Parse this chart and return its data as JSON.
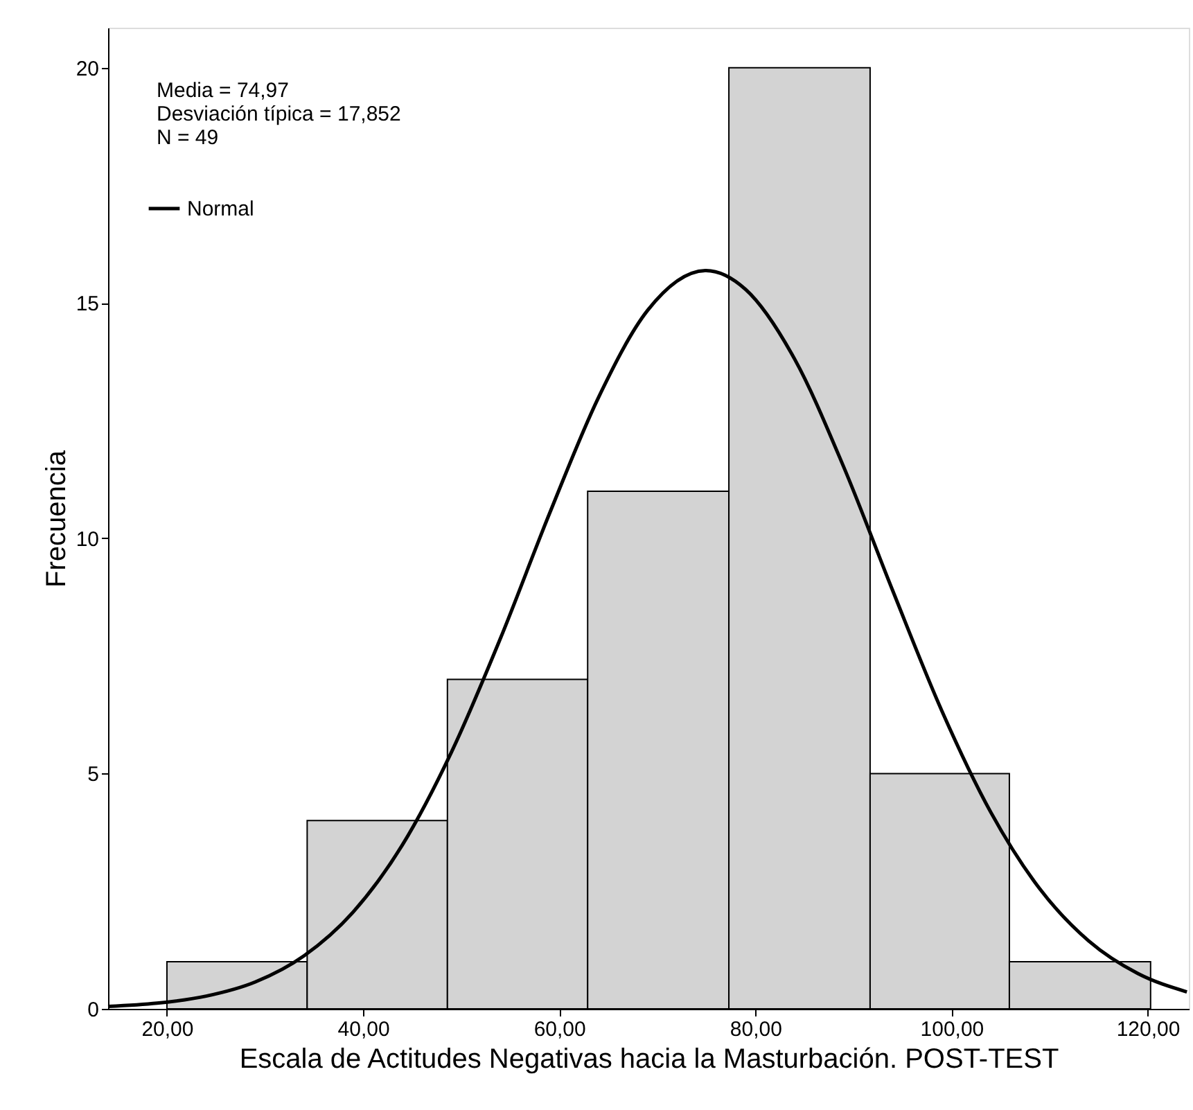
{
  "chart_data": {
    "type": "histogram",
    "xlabel": "Escala de Actitudes Negativas hacia la Masturbación. POST-TEST",
    "ylabel": "Frecuencia",
    "bins": [
      20,
      34.3,
      48.6,
      62.9,
      77.3,
      91.7,
      105.9,
      120.3
    ],
    "values": [
      1,
      4,
      7,
      11,
      20,
      5,
      1
    ],
    "color": "#d3d3d3",
    "series": [
      {
        "name": "Normal",
        "type": "line",
        "color": "#000000",
        "x": [
          14,
          19,
          24,
          29,
          34,
          39,
          44,
          49,
          54,
          59,
          64,
          69,
          74.97,
          79,
          84,
          89,
          94,
          99,
          104,
          109,
          114,
          119,
          124
        ],
        "values": [
          0.05,
          0.12,
          0.27,
          0.57,
          1.13,
          2.06,
          3.48,
          5.45,
          7.87,
          10.52,
          12.99,
          14.84,
          15.69,
          15.29,
          13.81,
          11.52,
          8.89,
          6.34,
          4.18,
          2.55,
          1.44,
          0.75,
          0.36
        ]
      }
    ],
    "annotations": [
      "Media = 74,97",
      "Desviación típica = 17,852",
      "N = 49"
    ],
    "xlim": [
      14,
      124.2
    ],
    "ylim": [
      0,
      20.85
    ],
    "xticks": [
      {
        "value": 20,
        "label": "20,00"
      },
      {
        "value": 40,
        "label": "40,00"
      },
      {
        "value": 60,
        "label": "60,00"
      },
      {
        "value": 80,
        "label": "80,00"
      },
      {
        "value": 100,
        "label": "100,00"
      },
      {
        "value": 120,
        "label": "120,00"
      }
    ],
    "yticks": [
      0,
      5,
      10,
      15,
      20
    ],
    "grid": false,
    "legend": "top left"
  }
}
